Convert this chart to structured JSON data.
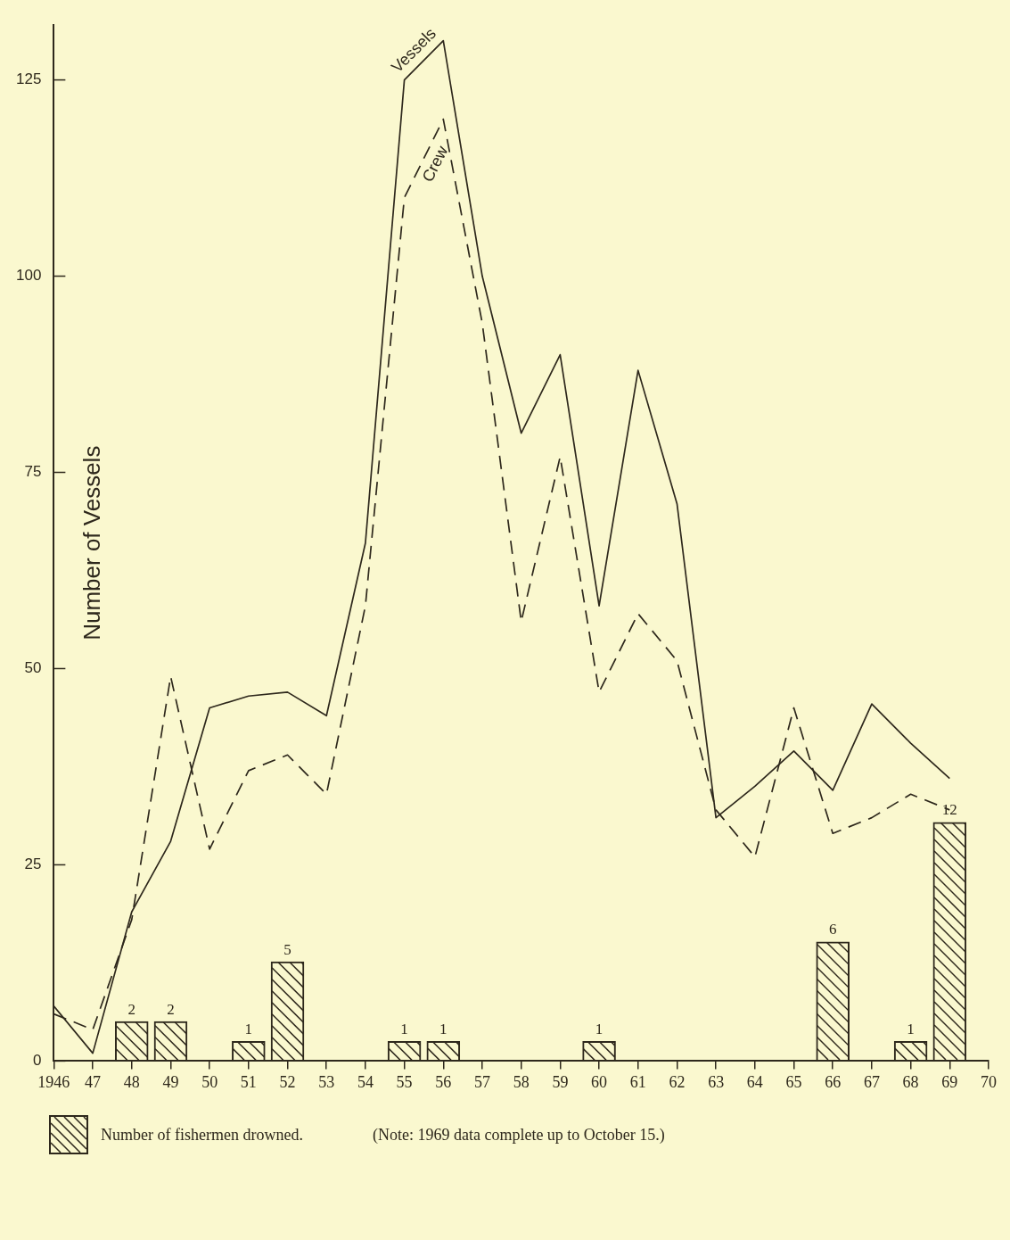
{
  "chart_data": {
    "type": "line",
    "ylabel": "Number of Vessels",
    "annotations": [
      "(Note: 1969 data complete up to October 15.)"
    ],
    "x": [
      1946,
      1947,
      1948,
      1949,
      1950,
      1951,
      1952,
      1953,
      1954,
      1955,
      1956,
      1957,
      1958,
      1959,
      1960,
      1961,
      1962,
      1963,
      1964,
      1965,
      1966,
      1967,
      1968,
      1969
    ],
    "series": [
      {
        "name": "Vessels",
        "color": "#2e281c",
        "line_style": "solid",
        "values": [
          7,
          1,
          19,
          28,
          45,
          46.5,
          47,
          44,
          66,
          125,
          130,
          100,
          80,
          90,
          58,
          88,
          71,
          31,
          35,
          39.5,
          34.5,
          45.5,
          40.5,
          36
        ]
      },
      {
        "name": "Crew",
        "color": "#2e281c",
        "line_style": "dashed",
        "values": [
          6,
          4,
          18,
          49,
          27,
          37,
          39,
          34,
          58,
          110,
          120,
          94,
          56,
          77,
          47,
          57,
          51,
          32,
          26,
          45,
          29,
          31,
          34,
          32
        ]
      },
      {
        "name": "Number of fishermen drowned.",
        "type": "bar",
        "axis": "y2",
        "color": "#2e281c",
        "x": [
          1948,
          1949,
          1951,
          1952,
          1955,
          1956,
          1960,
          1966,
          1968,
          1969
        ],
        "values": [
          2,
          2,
          1,
          5,
          1,
          1,
          1,
          6,
          1,
          12
        ],
        "value_labels": [
          "2",
          "2",
          "1",
          "5",
          "1",
          "1",
          "1",
          "6",
          "1",
          "12"
        ]
      }
    ],
    "xlim": [
      1946,
      1970
    ],
    "xticks": [
      1946,
      {
        "value": 1947,
        "label": "47"
      },
      {
        "value": 1948,
        "label": "48"
      },
      {
        "value": 1949,
        "label": "49"
      },
      {
        "value": 1950,
        "label": "50"
      },
      {
        "value": 1951,
        "label": "51"
      },
      {
        "value": 1952,
        "label": "52"
      },
      {
        "value": 1953,
        "label": "53"
      },
      {
        "value": 1954,
        "label": "54"
      },
      {
        "value": 1955,
        "label": "55"
      },
      {
        "value": 1956,
        "label": "56"
      },
      {
        "value": 1957,
        "label": "57"
      },
      {
        "value": 1958,
        "label": "58"
      },
      {
        "value": 1959,
        "label": "59"
      },
      {
        "value": 1960,
        "label": "60"
      },
      {
        "value": 1961,
        "label": "61"
      },
      {
        "value": 1962,
        "label": "62"
      },
      {
        "value": 1963,
        "label": "63"
      },
      {
        "value": 1964,
        "label": "64"
      },
      {
        "value": 1965,
        "label": "65"
      },
      {
        "value": 1966,
        "label": "66"
      },
      {
        "value": 1967,
        "label": "67"
      },
      {
        "value": 1968,
        "label": "68"
      },
      {
        "value": 1969,
        "label": "69"
      },
      {
        "value": 1970,
        "label": "70"
      }
    ],
    "ylim": [
      0,
      132
    ],
    "yticks": [
      0,
      25,
      50,
      75,
      100,
      125
    ],
    "y2lim": [
      0,
      52
    ],
    "legend": "bottom left"
  }
}
